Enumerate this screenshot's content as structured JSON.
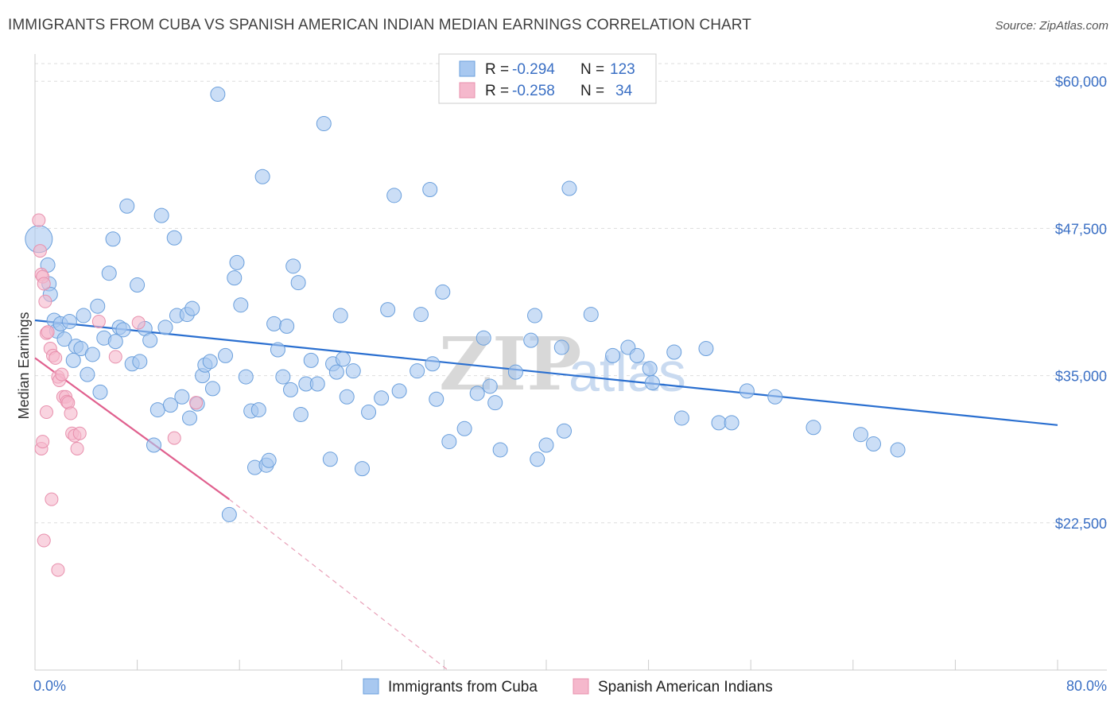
{
  "header": {
    "title": "IMMIGRANTS FROM CUBA VS SPANISH AMERICAN INDIAN MEDIAN EARNINGS CORRELATION CHART",
    "source": "Source: ZipAtlas.com"
  },
  "watermark": {
    "zip": "ZIP",
    "atlas": "atlas"
  },
  "stats": {
    "rows": [
      {
        "r_label": "R =",
        "r_value": "-0.294",
        "n_label": "N =",
        "n_value": "123",
        "color": "#a8c8f0"
      },
      {
        "r_label": "R =",
        "r_value": "-0.258",
        "n_label": "N =",
        "n_value": "34",
        "color": "#f5b8cc"
      }
    ]
  },
  "chart_data": {
    "type": "scatter",
    "title": "IMMIGRANTS FROM CUBA VS SPANISH AMERICAN INDIAN MEDIAN EARNINGS CORRELATION CHART",
    "xlabel": "",
    "ylabel": "Median Earnings",
    "xlim": [
      0,
      80
    ],
    "ylim": [
      10000,
      61500
    ],
    "x_tick_labels": [
      "0.0%",
      "80.0%"
    ],
    "y_ticks": [
      22500,
      35000,
      47500,
      60000
    ],
    "y_tick_labels": [
      "$22,500",
      "$35,000",
      "$47,500",
      "$60,000"
    ],
    "grid": true,
    "legend_position": "bottom",
    "series": [
      {
        "name": "Immigrants from Cuba",
        "color": "#a8c8f0",
        "stroke": "#6a9fdc",
        "trend": {
          "x": [
            0,
            80
          ],
          "y": [
            39700,
            30800
          ]
        },
        "points": [
          [
            0.3,
            46600
          ],
          [
            1.0,
            44400
          ],
          [
            1.1,
            42800
          ],
          [
            1.2,
            41900
          ],
          [
            1.5,
            39700
          ],
          [
            1.7,
            38800
          ],
          [
            2.0,
            39400
          ],
          [
            2.3,
            38100
          ],
          [
            2.7,
            39600
          ],
          [
            3.0,
            36300
          ],
          [
            3.2,
            37500
          ],
          [
            3.6,
            37300
          ],
          [
            3.8,
            40100
          ],
          [
            4.1,
            35100
          ],
          [
            4.5,
            36800
          ],
          [
            4.9,
            40900
          ],
          [
            5.1,
            33600
          ],
          [
            5.4,
            38200
          ],
          [
            5.8,
            43700
          ],
          [
            6.1,
            46600
          ],
          [
            6.3,
            37900
          ],
          [
            6.6,
            39100
          ],
          [
            6.9,
            38900
          ],
          [
            7.2,
            49400
          ],
          [
            7.6,
            36000
          ],
          [
            8.0,
            42700
          ],
          [
            8.2,
            36200
          ],
          [
            8.6,
            39000
          ],
          [
            9.0,
            38000
          ],
          [
            9.3,
            29100
          ],
          [
            9.6,
            32100
          ],
          [
            9.9,
            48600
          ],
          [
            10.2,
            39100
          ],
          [
            10.6,
            32500
          ],
          [
            10.9,
            46700
          ],
          [
            11.1,
            40100
          ],
          [
            11.5,
            33200
          ],
          [
            11.9,
            40200
          ],
          [
            12.1,
            31400
          ],
          [
            12.3,
            40700
          ],
          [
            12.7,
            32600
          ],
          [
            13.1,
            35000
          ],
          [
            13.3,
            35900
          ],
          [
            13.7,
            36200
          ],
          [
            13.9,
            33900
          ],
          [
            14.3,
            58900
          ],
          [
            14.9,
            36700
          ],
          [
            15.2,
            23200
          ],
          [
            15.6,
            43300
          ],
          [
            15.8,
            44600
          ],
          [
            16.1,
            41000
          ],
          [
            16.5,
            34900
          ],
          [
            16.9,
            32000
          ],
          [
            17.2,
            27200
          ],
          [
            17.5,
            32100
          ],
          [
            17.8,
            51900
          ],
          [
            18.1,
            27400
          ],
          [
            18.3,
            27800
          ],
          [
            18.7,
            39400
          ],
          [
            19.0,
            37200
          ],
          [
            19.4,
            34900
          ],
          [
            19.7,
            39200
          ],
          [
            20.0,
            33800
          ],
          [
            20.2,
            44300
          ],
          [
            20.6,
            42900
          ],
          [
            20.8,
            31700
          ],
          [
            21.2,
            34300
          ],
          [
            21.6,
            36300
          ],
          [
            22.1,
            34300
          ],
          [
            22.6,
            56400
          ],
          [
            23.1,
            27900
          ],
          [
            23.3,
            36000
          ],
          [
            23.6,
            35300
          ],
          [
            23.9,
            40100
          ],
          [
            24.1,
            36400
          ],
          [
            24.4,
            33200
          ],
          [
            24.9,
            35400
          ],
          [
            25.6,
            27100
          ],
          [
            26.1,
            31900
          ],
          [
            27.1,
            33100
          ],
          [
            27.6,
            40600
          ],
          [
            28.1,
            50300
          ],
          [
            28.5,
            33700
          ],
          [
            29.9,
            35400
          ],
          [
            30.2,
            40200
          ],
          [
            30.9,
            50800
          ],
          [
            31.1,
            36000
          ],
          [
            31.4,
            33000
          ],
          [
            31.9,
            42100
          ],
          [
            32.4,
            29400
          ],
          [
            33.6,
            30500
          ],
          [
            34.6,
            33500
          ],
          [
            35.1,
            38200
          ],
          [
            35.6,
            34100
          ],
          [
            36.0,
            32700
          ],
          [
            36.4,
            28700
          ],
          [
            37.6,
            35300
          ],
          [
            38.8,
            38000
          ],
          [
            39.1,
            40100
          ],
          [
            39.3,
            27900
          ],
          [
            40.0,
            29100
          ],
          [
            41.2,
            37400
          ],
          [
            41.4,
            30300
          ],
          [
            41.8,
            50900
          ],
          [
            43.5,
            40200
          ],
          [
            45.2,
            36700
          ],
          [
            46.4,
            37400
          ],
          [
            47.1,
            36700
          ],
          [
            48.1,
            35600
          ],
          [
            48.3,
            34400
          ],
          [
            50.0,
            37000
          ],
          [
            50.6,
            31400
          ],
          [
            52.5,
            37300
          ],
          [
            53.5,
            31000
          ],
          [
            54.5,
            31000
          ],
          [
            55.7,
            33700
          ],
          [
            57.9,
            33200
          ],
          [
            60.9,
            30600
          ],
          [
            64.6,
            30000
          ],
          [
            65.6,
            29200
          ],
          [
            67.5,
            28700
          ]
        ]
      },
      {
        "name": "Spanish American Indians",
        "color": "#f5b8cc",
        "stroke": "#e890ad",
        "trend": {
          "x": [
            0,
            15.2
          ],
          "y": [
            36500,
            24500
          ]
        },
        "trend_dashed": {
          "x": [
            15.2,
            32.3
          ],
          "y": [
            24500,
            10000
          ]
        },
        "points": [
          [
            0.3,
            48200
          ],
          [
            0.4,
            45600
          ],
          [
            0.5,
            43600
          ],
          [
            0.6,
            43400
          ],
          [
            0.7,
            42800
          ],
          [
            0.8,
            41300
          ],
          [
            0.9,
            38600
          ],
          [
            1.0,
            38700
          ],
          [
            1.2,
            37300
          ],
          [
            1.4,
            36700
          ],
          [
            1.6,
            36500
          ],
          [
            1.8,
            34900
          ],
          [
            1.9,
            34600
          ],
          [
            2.1,
            35100
          ],
          [
            2.2,
            33200
          ],
          [
            2.4,
            33200
          ],
          [
            2.5,
            32800
          ],
          [
            2.6,
            32700
          ],
          [
            2.8,
            31800
          ],
          [
            2.9,
            30100
          ],
          [
            3.1,
            29900
          ],
          [
            3.3,
            28800
          ],
          [
            3.5,
            30100
          ],
          [
            0.5,
            28800
          ],
          [
            0.6,
            29400
          ],
          [
            0.9,
            31900
          ],
          [
            1.3,
            24500
          ],
          [
            0.7,
            21000
          ],
          [
            1.8,
            18500
          ],
          [
            10.9,
            29700
          ],
          [
            12.6,
            32700
          ],
          [
            8.1,
            39500
          ],
          [
            5.0,
            39600
          ],
          [
            6.3,
            36600
          ]
        ]
      }
    ]
  }
}
